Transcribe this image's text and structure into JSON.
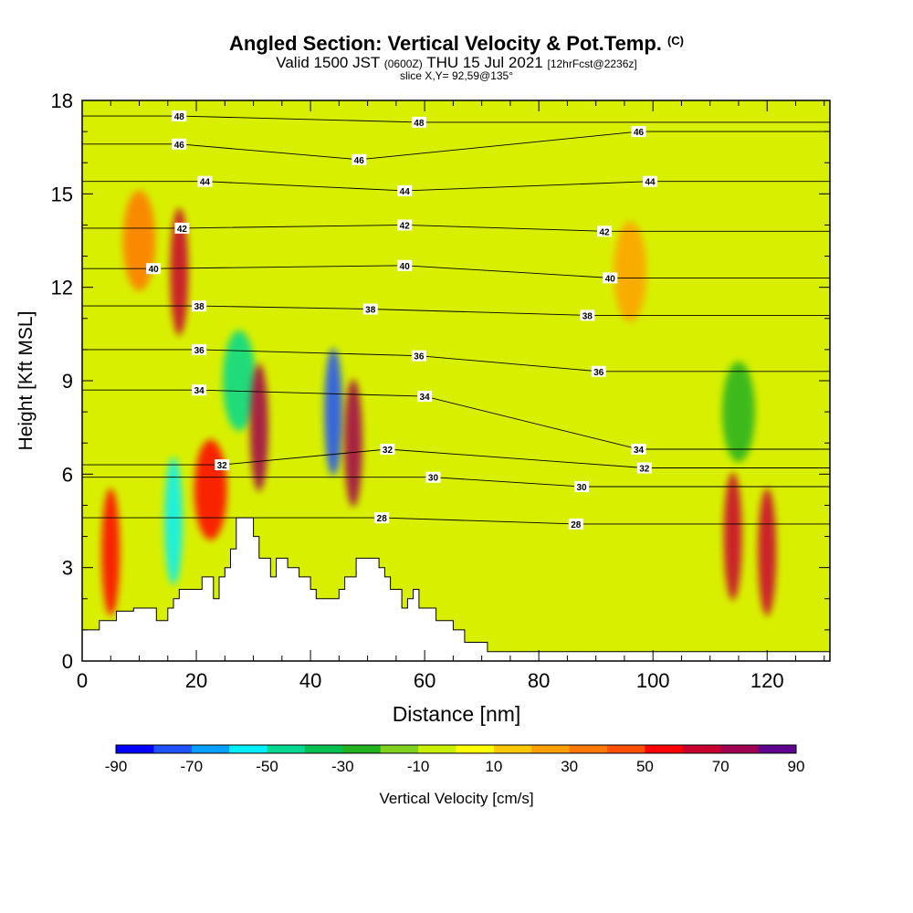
{
  "header": {
    "title": "Angled Section: Vertical Velocity & Pot.Temp.",
    "title_tag": "(C)",
    "valid_prefix": "Valid 1500 JST",
    "valid_utc": "(0600Z)",
    "valid_date": "THU 15 Jul 2021",
    "forecast": "[12hrFcst@2236z]",
    "slice": "slice X,Y= 92,59@135°"
  },
  "chart_data": {
    "type": "heatmap",
    "xlabel": "Distance [nm]",
    "ylabel": "Height [Kft MSL]",
    "xlim": [
      0,
      131
    ],
    "ylim": [
      0,
      18
    ],
    "xticks": [
      0,
      20,
      40,
      60,
      80,
      100,
      120
    ],
    "yticks": [
      0,
      3,
      6,
      9,
      12,
      15,
      18
    ],
    "colorbar": {
      "label": "Vertical Velocity [cm/s]",
      "tick_labels": [
        -90,
        -70,
        -50,
        -30,
        -10,
        10,
        30,
        50,
        70,
        90
      ],
      "colors": [
        "#0000ff",
        "#1e50ff",
        "#00a0ff",
        "#00f0ff",
        "#00d890",
        "#00c050",
        "#20b020",
        "#80d020",
        "#c8f000",
        "#ffff00",
        "#ffc800",
        "#ffa000",
        "#ff7800",
        "#ff5000",
        "#ff0000",
        "#c80030",
        "#a00050",
        "#600090"
      ]
    },
    "vertical_velocity_cells": [
      {
        "x": 5,
        "z": 3.5,
        "w": 55
      },
      {
        "x": 10,
        "z": 13.5,
        "w": 35
      },
      {
        "x": 17,
        "z": 12.5,
        "w": 60
      },
      {
        "x": 16,
        "z": 4.5,
        "w": -60
      },
      {
        "x": 22.5,
        "z": 5.5,
        "w": 50
      },
      {
        "x": 27.5,
        "z": 9,
        "w": -45
      },
      {
        "x": 31,
        "z": 7.5,
        "w": 75
      },
      {
        "x": 44,
        "z": 8,
        "w": -80
      },
      {
        "x": 47.5,
        "z": 7,
        "w": 70
      },
      {
        "x": 96,
        "z": 12.5,
        "w": 25
      },
      {
        "x": 114,
        "z": 4,
        "w": 65
      },
      {
        "x": 115,
        "z": 8,
        "w": -30
      },
      {
        "x": 120,
        "z": 3.5,
        "w": 60
      }
    ],
    "potential_temperature_contour_labels": [
      {
        "value": "48",
        "x": 17,
        "z": 17.5
      },
      {
        "value": "48",
        "x": 59,
        "z": 17.3
      },
      {
        "value": "46",
        "x": 17,
        "z": 16.6
      },
      {
        "value": "46",
        "x": 48.5,
        "z": 16.1
      },
      {
        "value": "46",
        "x": 97.5,
        "z": 17.0
      },
      {
        "value": "44",
        "x": 21.5,
        "z": 15.4
      },
      {
        "value": "44",
        "x": 56.5,
        "z": 15.1
      },
      {
        "value": "44",
        "x": 99.5,
        "z": 15.4
      },
      {
        "value": "42",
        "x": 17.5,
        "z": 13.9
      },
      {
        "value": "42",
        "x": 56.5,
        "z": 14.0
      },
      {
        "value": "42",
        "x": 91.5,
        "z": 13.8
      },
      {
        "value": "40",
        "x": 12.5,
        "z": 12.6
      },
      {
        "value": "40",
        "x": 56.5,
        "z": 12.7
      },
      {
        "value": "40",
        "x": 92.5,
        "z": 12.3
      },
      {
        "value": "38",
        "x": 20.5,
        "z": 11.4
      },
      {
        "value": "38",
        "x": 50.5,
        "z": 11.3
      },
      {
        "value": "38",
        "x": 88.5,
        "z": 11.1
      },
      {
        "value": "36",
        "x": 20.5,
        "z": 10.0
      },
      {
        "value": "36",
        "x": 59,
        "z": 9.8
      },
      {
        "value": "36",
        "x": 90.5,
        "z": 9.3
      },
      {
        "value": "34",
        "x": 20.5,
        "z": 8.7
      },
      {
        "value": "34",
        "x": 60,
        "z": 8.5
      },
      {
        "value": "34",
        "x": 97.5,
        "z": 6.8
      },
      {
        "value": "32",
        "x": 24.5,
        "z": 6.3
      },
      {
        "value": "32",
        "x": 53.5,
        "z": 6.8
      },
      {
        "value": "32",
        "x": 98.5,
        "z": 6.2
      },
      {
        "value": "30",
        "x": 61.5,
        "z": 5.9
      },
      {
        "value": "30",
        "x": 87.5,
        "z": 5.6
      },
      {
        "value": "28",
        "x": 52.5,
        "z": 4.6
      },
      {
        "value": "28",
        "x": 86.5,
        "z": 4.4
      }
    ],
    "terrain_height_kft": [
      [
        0,
        1.0
      ],
      [
        3,
        1.0
      ],
      [
        3,
        1.3
      ],
      [
        6,
        1.3
      ],
      [
        6,
        1.6
      ],
      [
        9,
        1.6
      ],
      [
        9,
        1.7
      ],
      [
        13,
        1.7
      ],
      [
        13,
        1.3
      ],
      [
        15,
        1.3
      ],
      [
        15,
        1.7
      ],
      [
        16,
        1.7
      ],
      [
        16,
        2.0
      ],
      [
        17,
        2.0
      ],
      [
        17,
        2.3
      ],
      [
        21,
        2.3
      ],
      [
        21,
        2.7
      ],
      [
        23,
        2.7
      ],
      [
        23,
        2.0
      ],
      [
        24,
        2.0
      ],
      [
        24,
        2.7
      ],
      [
        25,
        2.7
      ],
      [
        25,
        3.0
      ],
      [
        26,
        3.0
      ],
      [
        26,
        3.6
      ],
      [
        27,
        3.6
      ],
      [
        27,
        4.6
      ],
      [
        30,
        4.6
      ],
      [
        30,
        4.0
      ],
      [
        31,
        4.0
      ],
      [
        31,
        3.3
      ],
      [
        33,
        3.3
      ],
      [
        33,
        2.7
      ],
      [
        34,
        2.7
      ],
      [
        34,
        3.3
      ],
      [
        36,
        3.3
      ],
      [
        36,
        3.0
      ],
      [
        38,
        3.0
      ],
      [
        38,
        2.7
      ],
      [
        40,
        2.7
      ],
      [
        40,
        2.3
      ],
      [
        41,
        2.3
      ],
      [
        41,
        2.0
      ],
      [
        45,
        2.0
      ],
      [
        45,
        2.3
      ],
      [
        46,
        2.3
      ],
      [
        46,
        2.7
      ],
      [
        48,
        2.7
      ],
      [
        48,
        3.3
      ],
      [
        52,
        3.3
      ],
      [
        52,
        3.0
      ],
      [
        53,
        3.0
      ],
      [
        53,
        2.7
      ],
      [
        54,
        2.7
      ],
      [
        54,
        2.3
      ],
      [
        56,
        2.3
      ],
      [
        56,
        1.7
      ],
      [
        57,
        1.7
      ],
      [
        57,
        2.0
      ],
      [
        58,
        2.0
      ],
      [
        58,
        2.3
      ],
      [
        59,
        2.3
      ],
      [
        59,
        1.7
      ],
      [
        62,
        1.7
      ],
      [
        62,
        1.3
      ],
      [
        65,
        1.3
      ],
      [
        65,
        1.0
      ],
      [
        67,
        1.0
      ],
      [
        67,
        0.6
      ],
      [
        71,
        0.6
      ],
      [
        71,
        0.3
      ],
      [
        131,
        0.3
      ]
    ]
  }
}
